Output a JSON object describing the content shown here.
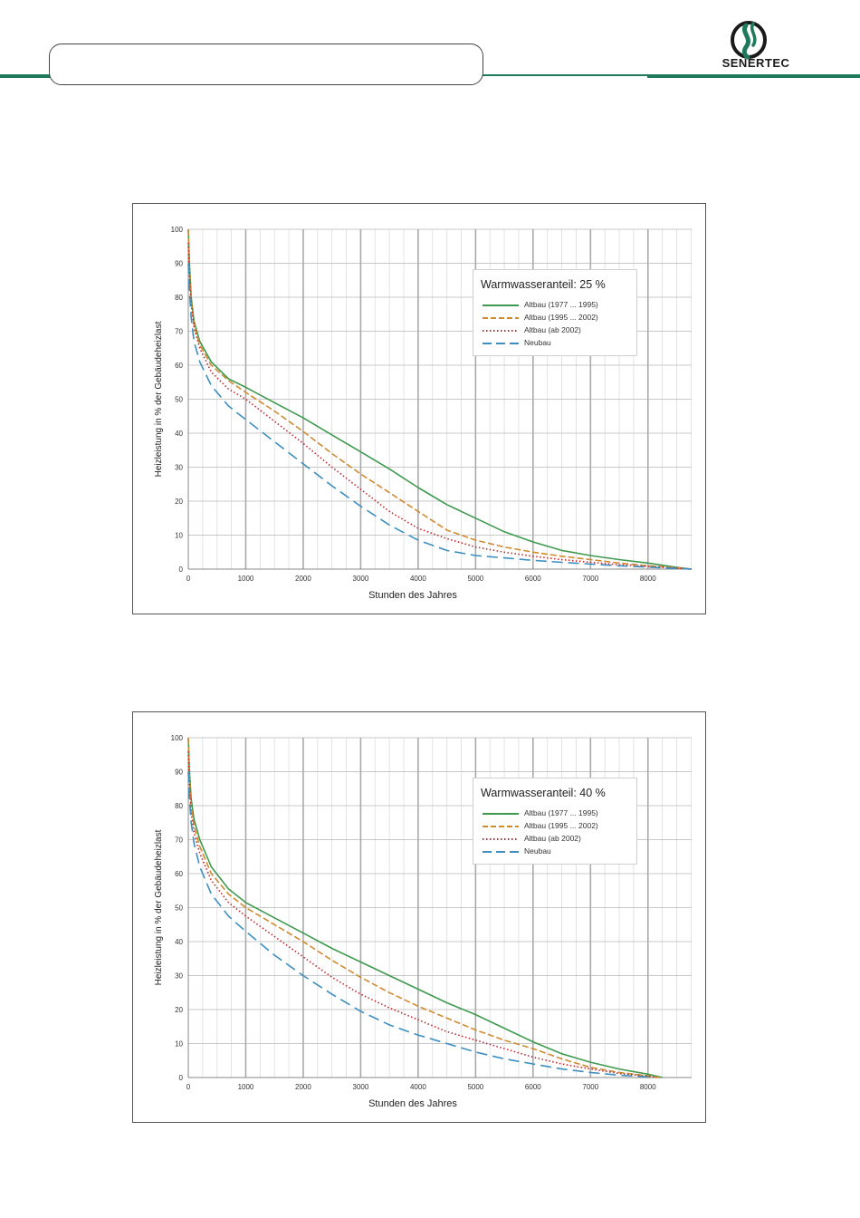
{
  "header": {
    "logo_text": "SENERTEC",
    "box_text": ""
  },
  "colors": {
    "brand": "#1f7a5c",
    "grid": "#c8c8c8",
    "grid_major": "#a9a9a9"
  },
  "chart_data": [
    {
      "type": "line",
      "title": "Warmwasseranteil: 25 %",
      "xlabel": "Stunden des Jahres",
      "ylabel": "Heizleistung in % der Gebäudeheizlast",
      "xlim": [
        0,
        8760
      ],
      "ylim": [
        0,
        100
      ],
      "xticks": [
        0,
        1000,
        2000,
        3000,
        4000,
        5000,
        6000,
        7000,
        8000
      ],
      "yticks": [
        0,
        10,
        20,
        30,
        40,
        50,
        60,
        70,
        80,
        90,
        100
      ],
      "grid": true,
      "legend_position": "top-right",
      "series": [
        {
          "name": "Altbau (1977 ... 1995)",
          "color": "#3f9a4f",
          "style": "solid",
          "x": [
            0,
            20,
            50,
            100,
            200,
            400,
            700,
            1000,
            1500,
            2000,
            2500,
            3000,
            3500,
            4000,
            4500,
            5000,
            5500,
            6000,
            6500,
            7000,
            7500,
            8000,
            8500,
            8760
          ],
          "y": [
            100,
            90,
            80,
            73,
            67,
            61,
            56,
            53.5,
            49,
            44.5,
            39.5,
            34.5,
            29.5,
            24,
            19,
            15,
            11,
            8,
            5.5,
            4,
            2.8,
            1.8,
            0.5,
            0
          ]
        },
        {
          "name": "Altbau (1995 ... 2002)",
          "color": "#d08a30",
          "style": "dashed",
          "x": [
            0,
            20,
            50,
            100,
            200,
            400,
            700,
            1000,
            1500,
            2000,
            2500,
            3000,
            3500,
            4000,
            4500,
            5000,
            5500,
            6000,
            6500,
            7000,
            7500,
            8000,
            8500,
            8760
          ],
          "y": [
            100,
            88,
            79,
            72,
            66,
            60,
            55.5,
            52,
            46.5,
            40.5,
            34,
            28,
            22.5,
            17,
            11.5,
            8.5,
            6.5,
            5,
            3.8,
            2.8,
            1.8,
            1,
            0.4,
            0
          ]
        },
        {
          "name": "Altbau (ab 2002)",
          "color": "#c0282d",
          "style": "dotted",
          "x": [
            0,
            20,
            50,
            100,
            200,
            400,
            700,
            1000,
            1500,
            2000,
            2500,
            3000,
            3500,
            4000,
            4500,
            5000,
            5500,
            6000,
            6500,
            7000,
            7500,
            8000,
            8500,
            8760
          ],
          "y": [
            96,
            86,
            78,
            71,
            65,
            58,
            53,
            50,
            43.5,
            37,
            30,
            23.5,
            17,
            12,
            9,
            6.5,
            5,
            3.8,
            2.8,
            2,
            1.3,
            0.8,
            0.3,
            0
          ]
        },
        {
          "name": "Neubau",
          "color": "#3d8fc0",
          "style": "longdash",
          "x": [
            0,
            20,
            50,
            100,
            200,
            400,
            700,
            1000,
            1500,
            2000,
            2500,
            3000,
            3500,
            4000,
            4500,
            5000,
            5500,
            6000,
            6500,
            7000,
            7500,
            8000,
            8500,
            8760
          ],
          "y": [
            90,
            82,
            74,
            67,
            61,
            54,
            48,
            44,
            37.5,
            31,
            24.5,
            18.5,
            13,
            8.5,
            5.5,
            4,
            3.3,
            2.6,
            2,
            1.5,
            1,
            0.6,
            0.2,
            0
          ]
        }
      ]
    },
    {
      "type": "line",
      "title": "Warmwasseranteil: 40 %",
      "xlabel": "Stunden des Jahres",
      "ylabel": "Heizleistung in % der Gebäudeheizlast",
      "xlim": [
        0,
        8760
      ],
      "ylim": [
        0,
        100
      ],
      "xticks": [
        0,
        1000,
        2000,
        3000,
        4000,
        5000,
        6000,
        7000,
        8000
      ],
      "yticks": [
        0,
        10,
        20,
        30,
        40,
        50,
        60,
        70,
        80,
        90,
        100
      ],
      "grid": true,
      "legend_position": "top-right",
      "series": [
        {
          "name": "Altbau (1977 ... 1995)",
          "color": "#3f9a4f",
          "style": "solid",
          "x": [
            0,
            20,
            50,
            100,
            200,
            400,
            700,
            1000,
            1500,
            2000,
            2500,
            3000,
            3500,
            4000,
            4500,
            5000,
            5500,
            6000,
            6500,
            7000,
            7500,
            8000,
            8250
          ],
          "y": [
            100,
            90,
            82,
            76,
            70,
            62,
            55.5,
            51.5,
            47,
            42.5,
            38,
            34,
            30,
            26,
            22,
            18.5,
            14.5,
            10.5,
            7,
            4.5,
            2.5,
            1,
            0
          ]
        },
        {
          "name": "Altbau (1995 ... 2002)",
          "color": "#d08a30",
          "style": "dashed",
          "x": [
            0,
            20,
            50,
            100,
            200,
            400,
            700,
            1000,
            1500,
            2000,
            2500,
            3000,
            3500,
            4000,
            4500,
            5000,
            5500,
            6000,
            6500,
            7000,
            7500,
            8000,
            8200
          ],
          "y": [
            100,
            88,
            80,
            74,
            68,
            60,
            54,
            50,
            45,
            40,
            34.5,
            29.5,
            25,
            21,
            17.5,
            14,
            11,
            8.5,
            5.5,
            3,
            1.5,
            0.5,
            0
          ]
        },
        {
          "name": "Altbau (ab 2002)",
          "color": "#c0282d",
          "style": "dotted",
          "x": [
            0,
            20,
            50,
            100,
            200,
            400,
            700,
            1000,
            1500,
            2000,
            2500,
            3000,
            3500,
            4000,
            4500,
            5000,
            5500,
            6000,
            6500,
            7000,
            7500,
            8000,
            8150
          ],
          "y": [
            96,
            86,
            78,
            72,
            66,
            58,
            51.5,
            47.5,
            41.5,
            35.5,
            29.5,
            24.5,
            20.5,
            17,
            13.5,
            11,
            8.5,
            6,
            4,
            2.5,
            1.2,
            0.4,
            0
          ]
        },
        {
          "name": "Neubau",
          "color": "#3d8fc0",
          "style": "longdash",
          "x": [
            0,
            20,
            50,
            100,
            200,
            400,
            700,
            1000,
            1500,
            2000,
            2500,
            3000,
            3500,
            4000,
            4500,
            5000,
            5500,
            6000,
            6500,
            7000,
            7500,
            8000,
            8100
          ],
          "y": [
            90,
            82,
            75,
            69,
            62,
            54,
            47.5,
            43,
            36,
            30,
            24.5,
            19.5,
            15.5,
            12.5,
            10,
            7.5,
            5.5,
            4,
            2.5,
            1.5,
            0.7,
            0.2,
            0
          ]
        }
      ]
    }
  ]
}
